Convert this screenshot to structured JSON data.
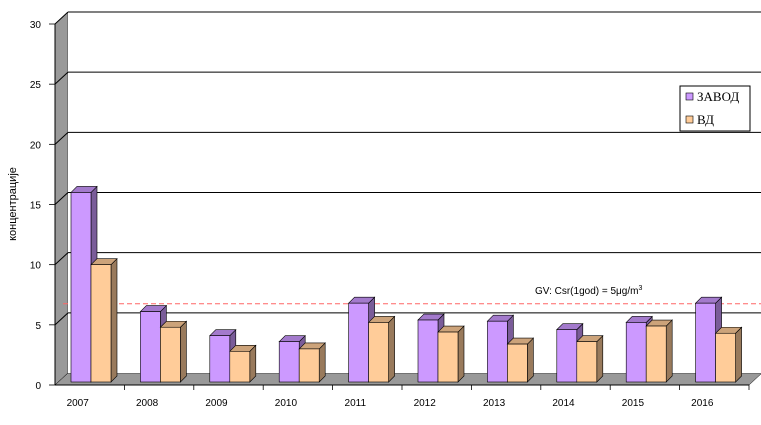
{
  "chart_data": {
    "type": "bar",
    "title": "",
    "xlabel": "",
    "ylabel": "концентрације",
    "categories": [
      "2007",
      "2008",
      "2009",
      "2010",
      "2011",
      "2012",
      "2013",
      "2014",
      "2015",
      "2016"
    ],
    "series": [
      {
        "name": "ЗАВОД",
        "color": "#cc99ff",
        "values": [
          16.0,
          6.1,
          4.1,
          3.6,
          6.8,
          5.4,
          5.3,
          4.6,
          5.2,
          6.8
        ]
      },
      {
        "name": "ВД",
        "color": "#ffcc99",
        "values": [
          10.0,
          4.8,
          2.8,
          3.0,
          5.2,
          4.4,
          3.4,
          3.6,
          4.9,
          4.3
        ]
      }
    ],
    "ylim": [
      0,
      30
    ],
    "yticks": [
      0,
      5,
      10,
      15,
      20,
      25,
      30
    ],
    "grid": true,
    "legend_position": "right",
    "reference_line": {
      "value": 6,
      "color": "#ff6666"
    },
    "annotation": {
      "text": "GV: Csr(1god) = 5μg/m",
      "superscript": "3"
    }
  }
}
